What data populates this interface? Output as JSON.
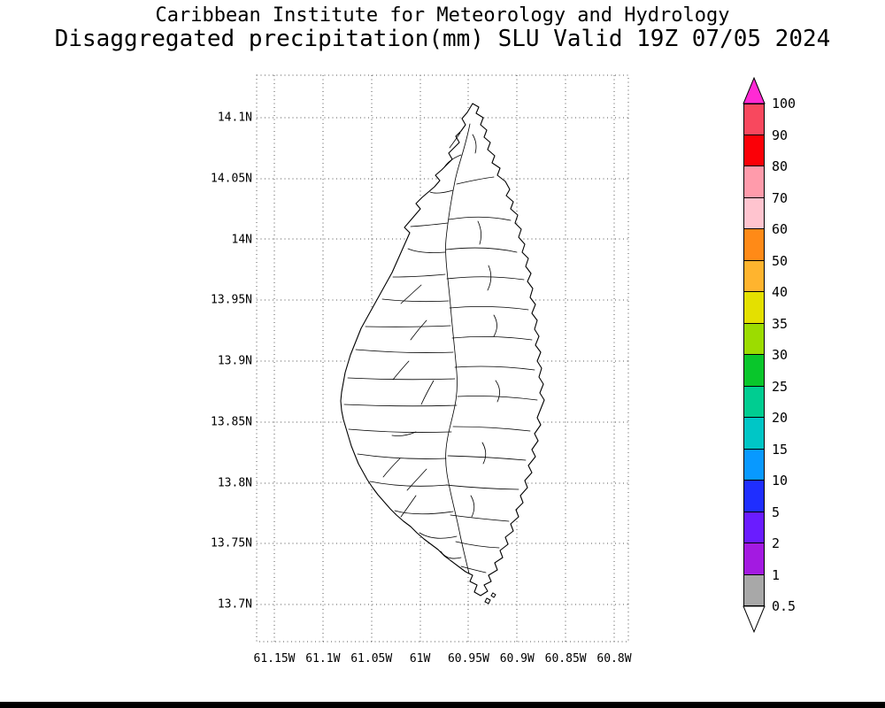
{
  "header": {
    "line1": "Caribbean Institute for Meteorology and Hydrology",
    "line2": "Disaggregated precipitation(mm) SLU Valid 19Z 07/05 2024"
  },
  "map": {
    "lat_ticks": [
      "14.1N",
      "14.05N",
      "14N",
      "13.95N",
      "13.9N",
      "13.85N",
      "13.8N",
      "13.75N",
      "13.7N"
    ],
    "lon_ticks": [
      "61.15W",
      "61.1W",
      "61.05W",
      "61W",
      "60.95W",
      "60.9W",
      "60.85W",
      "60.8W"
    ]
  },
  "colorbar": {
    "boundary_labels": [
      "100",
      "90",
      "80",
      "70",
      "60",
      "50",
      "40",
      "35",
      "30",
      "25",
      "20",
      "15",
      "10",
      "5",
      "2",
      "1",
      "0.5"
    ],
    "segment_colors": [
      "#f8485e",
      "#fb0007",
      "#ff9bab",
      "#ffc4cf",
      "#ff8a17",
      "#ffb42e",
      "#e4e000",
      "#9cdc00",
      "#09c62b",
      "#00cd91",
      "#00c6c6",
      "#0899ff",
      "#1f2eff",
      "#6a1cff",
      "#a31ae1",
      "#a8a8a8"
    ],
    "above_max_color": "#ff2ad4",
    "below_min_color": "#ffffff"
  }
}
